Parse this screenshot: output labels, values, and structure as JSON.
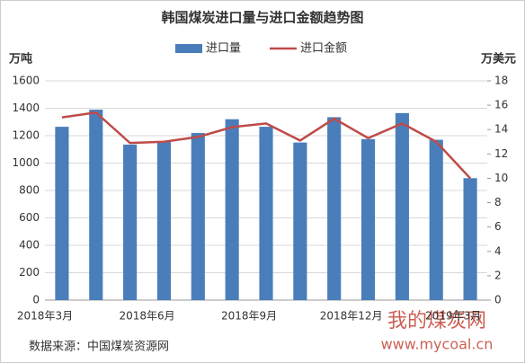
{
  "chart_data": {
    "type": "bar_line",
    "title": "韩国煤炭进口量与进口金额趋势图",
    "y_label": "万吨",
    "y2_label": "万美元",
    "categories": [
      "2018年3月",
      null,
      null,
      "2018年6月",
      null,
      null,
      "2018年9月",
      null,
      null,
      "2018年12月",
      null,
      null,
      "2019年3月"
    ],
    "series": [
      {
        "name": "进口量",
        "type": "bar",
        "color": "#4a7ebb",
        "values": [
          1265,
          1390,
          1135,
          1160,
          1220,
          1320,
          1265,
          1150,
          1335,
          1175,
          1365,
          1170,
          890
        ]
      },
      {
        "name": "进口金额",
        "type": "line",
        "axis": "y2",
        "color": "#be4b48",
        "values": [
          15.0,
          15.4,
          12.9,
          13.0,
          13.4,
          14.2,
          14.5,
          13.1,
          14.9,
          13.3,
          14.5,
          13.0,
          10.0
        ]
      }
    ],
    "ylim": [
      0,
      1600
    ],
    "yticks": [
      0,
      200,
      400,
      600,
      800,
      1000,
      1200,
      1400,
      1600
    ],
    "y2lim": [
      0,
      18
    ],
    "y2ticks": [
      0,
      2,
      4,
      6,
      8,
      10,
      12,
      14,
      16,
      18
    ],
    "grid": true,
    "legend": "top",
    "source": "数据来源：中国煤炭资源网",
    "watermarks": [
      "我的煤炭网",
      "www.mycoal.cn"
    ]
  }
}
